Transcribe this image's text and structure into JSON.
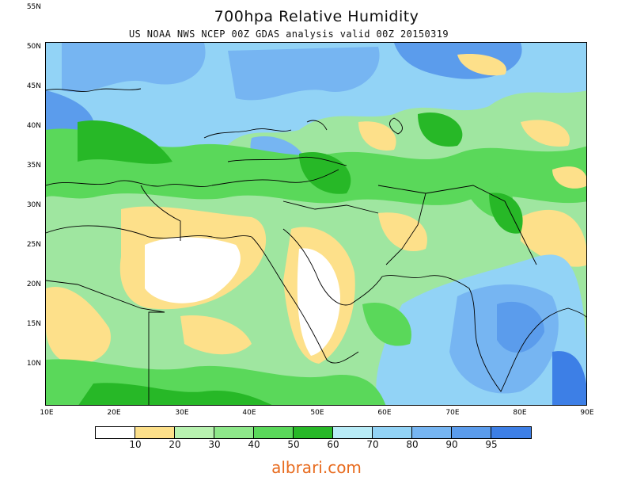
{
  "title": "700hpa Relative Humidity",
  "subtitle": "US NOAA NWS NCEP 00Z GDAS analysis valid 00Z 20150319",
  "lat_labels": [
    "55N",
    "50N",
    "45N",
    "40N",
    "35N",
    "30N",
    "25N",
    "20N",
    "15N",
    "10N"
  ],
  "lon_labels": [
    "10E",
    "20E",
    "30E",
    "40E",
    "50E",
    "60E",
    "70E",
    "80E",
    "90E"
  ],
  "legend": {
    "colors": [
      "#ffffff",
      "#fde08a",
      "#b8f2b0",
      "#8ee88a",
      "#5ad85a",
      "#27b827",
      "#b8ecf7",
      "#92d3f6",
      "#76b5f2",
      "#5b9cec",
      "#3d7fe6"
    ],
    "labels": [
      "10",
      "20",
      "30",
      "40",
      "50",
      "60",
      "70",
      "80",
      "90",
      "95"
    ]
  },
  "watermark": "albrari.com"
}
